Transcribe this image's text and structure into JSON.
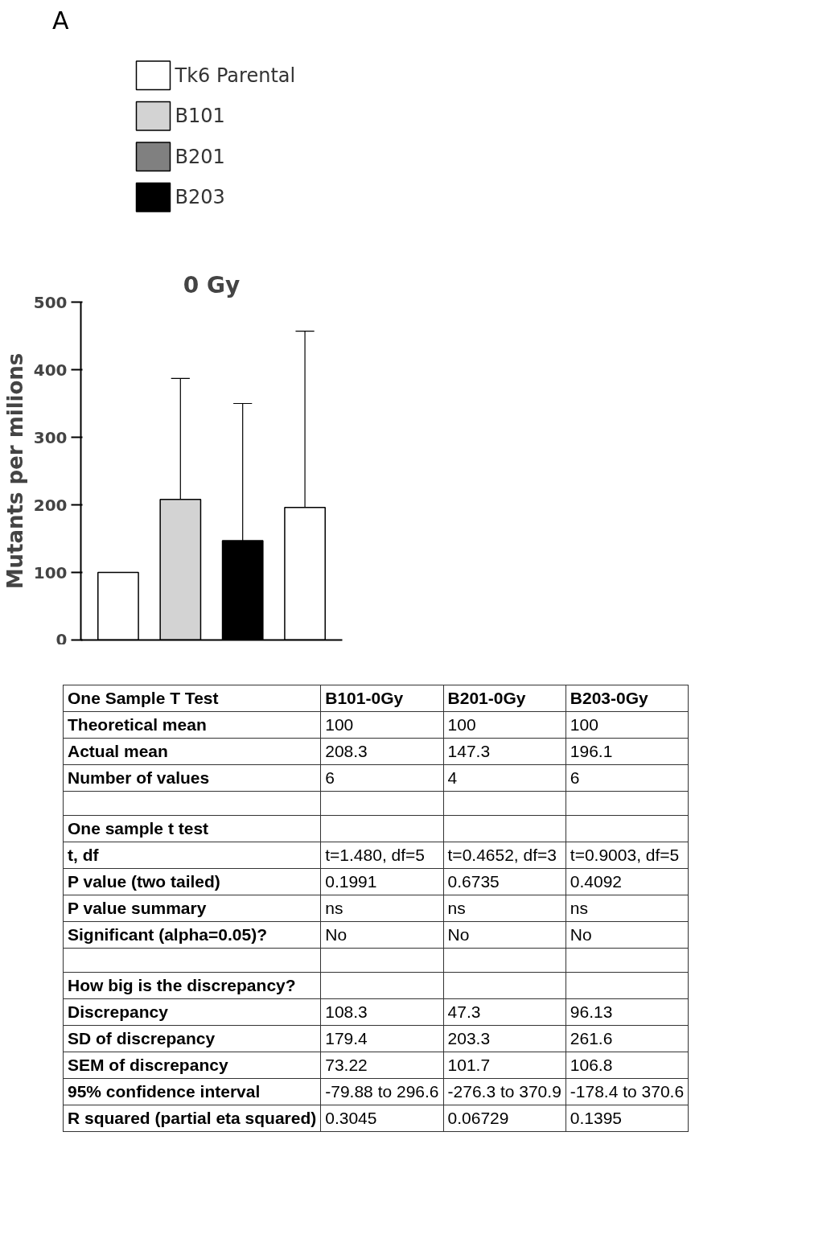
{
  "chart_data": [
    {
      "type": "bar",
      "title": "0 Gy",
      "ylabel": "Mutants per milions",
      "annotations": [
        "A"
      ],
      "categories": [
        null,
        null,
        null,
        null
      ],
      "series": [
        {
          "name": "Tk6 Parental",
          "color": "#ffffff",
          "values": [
            100,
            null,
            null,
            196
          ],
          "errors": [
            null,
            null,
            null,
            [
              196,
              457
            ]
          ]
        },
        {
          "name": "B101",
          "color": "#d3d3d3",
          "values": [
            null,
            208,
            null,
            null
          ],
          "errors": [
            null,
            [
              208,
              387
            ],
            null,
            null
          ]
        },
        {
          "name": "B201",
          "color": "#808080",
          "values": [
            null,
            null,
            null,
            null
          ]
        },
        {
          "name": "B203",
          "color": "#000000",
          "values": [
            null,
            null,
            147,
            null
          ],
          "errors": [
            null,
            null,
            [
              147,
              350
            ],
            null
          ]
        }
      ],
      "ylim": [
        0,
        500
      ],
      "yticks": [
        0,
        100,
        200,
        300,
        400,
        500
      ],
      "grid": false,
      "legend": "top",
      "tick_labels": "y"
    },
    {
      "type": "other",
      "categories": [
        "One Sample T Test",
        "B101-0Gy",
        "B201-0Gy",
        "B203-0Gy"
      ],
      "annotations": [
        "Theoretical mean",
        "100",
        "100",
        "100",
        "Actual mean",
        "208.3",
        "147.3",
        "196.1",
        "Number of values",
        "6",
        "4",
        "6",
        null,
        null,
        null,
        null,
        "One sample t test",
        null,
        null,
        null,
        "t, df",
        "t=1.480, df=5",
        "t=0.4652, df=3",
        "t=0.9003, df=5",
        "P value (two tailed)",
        "0.1991",
        "0.6735",
        "0.4092",
        "P value summary",
        "ns",
        "ns",
        "ns",
        "Significant (alpha=0.05)?",
        "No",
        "No",
        "No",
        null,
        null,
        null,
        null,
        "How big is the discrepancy?",
        null,
        null,
        null,
        "Discrepancy",
        "108.3",
        "47.3",
        "96.13",
        "SD of discrepancy",
        "179.4",
        "203.3",
        "261.6",
        "SEM of discrepancy",
        "73.22",
        "101.7",
        "106.8",
        "95% confidence interval",
        "-79.88 to 296.6",
        "-276.3 to 370.9",
        "-178.4 to 370.6",
        "R squared (partial eta squared)",
        "0.3045",
        "0.06729",
        "0.1395"
      ]
    }
  ]
}
